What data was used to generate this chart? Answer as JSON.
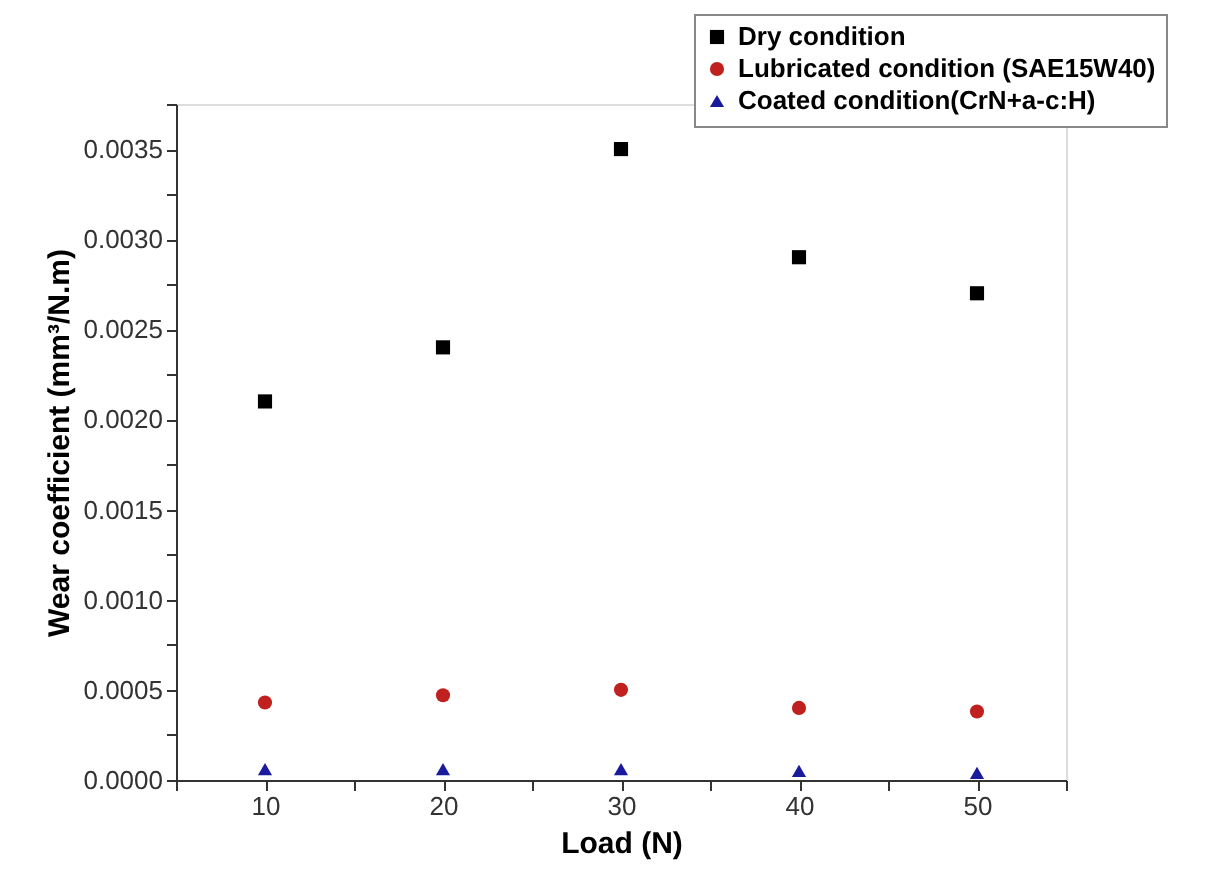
{
  "chart_data": {
    "type": "scatter",
    "xlabel": "Load (N)",
    "ylabel": "Wear coefficient (mm³/N.m)",
    "x": [
      10,
      20,
      30,
      40,
      50
    ],
    "series": [
      {
        "name": "Dry condition",
        "color": "#000000",
        "marker": "square",
        "values": [
          0.0021,
          0.0024,
          0.0035,
          0.0029,
          0.0027
        ]
      },
      {
        "name": "Lubricated condition (SAE15W40)",
        "color": "#c0201e",
        "marker": "circle",
        "values": [
          0.00043,
          0.00047,
          0.0005,
          0.0004,
          0.00038
        ]
      },
      {
        "name": "Coated condition(CrN+a-c:H)",
        "color": "#1a1a9c",
        "marker": "triangle",
        "values": [
          6e-05,
          6e-05,
          6e-05,
          5e-05,
          4e-05
        ]
      }
    ],
    "xlim": [
      5,
      55
    ],
    "xticks": [
      {
        "value": 5,
        "label": null
      },
      10,
      {
        "value": 15,
        "label": null
      },
      20,
      {
        "value": 25,
        "label": null
      },
      30,
      {
        "value": 35,
        "label": null
      },
      40,
      {
        "value": 45,
        "label": null
      },
      50,
      {
        "value": 55,
        "label": null
      }
    ],
    "ylim": [
      0,
      0.00375
    ],
    "yticks": [
      {
        "value": 0,
        "label": "0.0000"
      },
      {
        "value": 0.00025,
        "label": null
      },
      {
        "value": 0.0005,
        "label": "0.0005"
      },
      {
        "value": 0.00075,
        "label": null
      },
      {
        "value": 0.001,
        "label": "0.0010"
      },
      {
        "value": 0.00125,
        "label": null
      },
      {
        "value": 0.0015,
        "label": "0.0015"
      },
      {
        "value": 0.00175,
        "label": null
      },
      {
        "value": 0.002,
        "label": "0.0020"
      },
      {
        "value": 0.00225,
        "label": null
      },
      {
        "value": 0.0025,
        "label": "0.0025"
      },
      {
        "value": 0.00275,
        "label": null
      },
      {
        "value": 0.003,
        "label": "0.0030"
      },
      {
        "value": 0.00325,
        "label": null
      },
      {
        "value": 0.0035,
        "label": "0.0035"
      },
      {
        "value": 0.00375,
        "label": null
      }
    ],
    "legend": "top right",
    "grid": false
  }
}
